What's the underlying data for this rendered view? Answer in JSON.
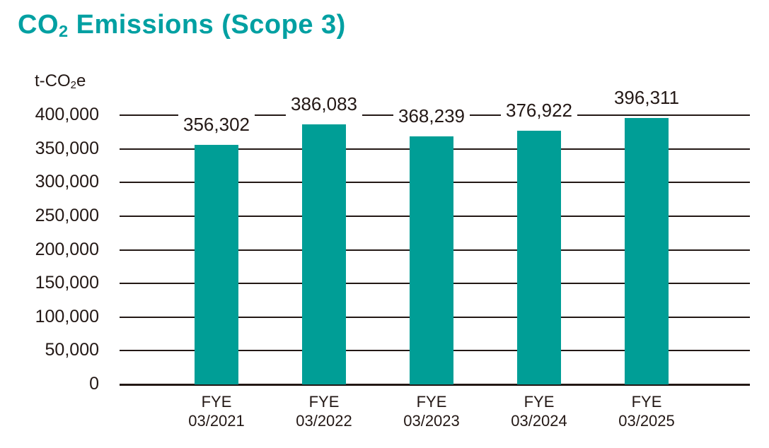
{
  "colors": {
    "title": "#00A0A2",
    "bar": "#009E96",
    "ink": "#231815",
    "background": "#FFFFFF"
  },
  "title": {
    "pre": "CO",
    "sub": "2",
    "post": " Emissions (Scope 3)"
  },
  "unit": {
    "pre": "t-CO",
    "sub": "2",
    "post": "e"
  },
  "chart_data": {
    "type": "bar",
    "title": "CO₂ Emissions (Scope 3)",
    "ylabel": "t-CO₂e",
    "xlabel": "",
    "categories": [
      {
        "line1": "FYE",
        "line2": "03/2021"
      },
      {
        "line1": "FYE",
        "line2": "03/2022"
      },
      {
        "line1": "FYE",
        "line2": "03/2023"
      },
      {
        "line1": "FYE",
        "line2": "03/2024"
      },
      {
        "line1": "FYE",
        "line2": "03/2025"
      }
    ],
    "values": [
      356302,
      386083,
      368239,
      376922,
      396311
    ],
    "value_labels": [
      "356,302",
      "386,083",
      "368,239",
      "376,922",
      "396,311"
    ],
    "ylim": [
      0,
      400000
    ],
    "ytick_step": 50000,
    "ytick_labels": [
      "400,000",
      "350,000",
      "300,000",
      "250,000",
      "200,000",
      "150,000",
      "100,000",
      "50,000",
      "0"
    ],
    "grid": true,
    "legend": false,
    "bar_color": "#009E96",
    "grid_color": "#231815",
    "text_color": "#231815"
  }
}
